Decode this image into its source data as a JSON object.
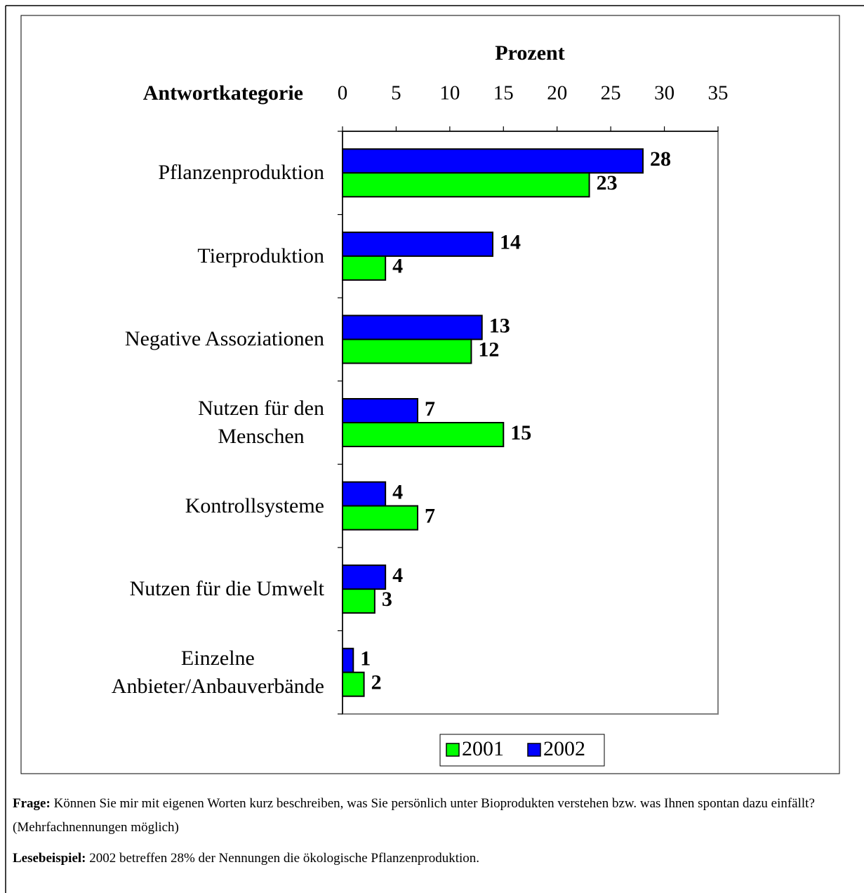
{
  "chart_data": {
    "type": "barh",
    "title": "Prozent",
    "ylabel": "Antwortkategorie",
    "categories": [
      "Pflanzenproduktion",
      "Tierproduktion",
      "Negative Assoziationen",
      "Nutzen für den\nMenschen",
      "Kontrollsysteme",
      "Nutzen für die Umwelt",
      "Einzelne\nAnbieter/Anbauverbände"
    ],
    "series": [
      {
        "name": "2001",
        "color": "#00ff00",
        "values": [
          23,
          4,
          12,
          15,
          7,
          3,
          2
        ]
      },
      {
        "name": "2002",
        "color": "#0000ff",
        "values": [
          28,
          14,
          13,
          7,
          4,
          4,
          1
        ]
      }
    ],
    "xlim": [
      0,
      35
    ],
    "xticks": [
      0,
      5,
      10,
      15,
      20,
      25,
      30,
      35
    ]
  },
  "notes": [
    {
      "label": "Frage:",
      "text": " Können Sie mir mit eigenen Worten kurz beschreiben, was Sie persönlich unter Bioprodukten verstehen bzw. was Ihnen spontan dazu einfällt? (Mehrfachnennungen möglich)"
    },
    {
      "label": "Lesebeispiel:",
      "text": " 2002 betreffen 28% der Nennungen die ökologische Pflanzenproduktion."
    }
  ]
}
